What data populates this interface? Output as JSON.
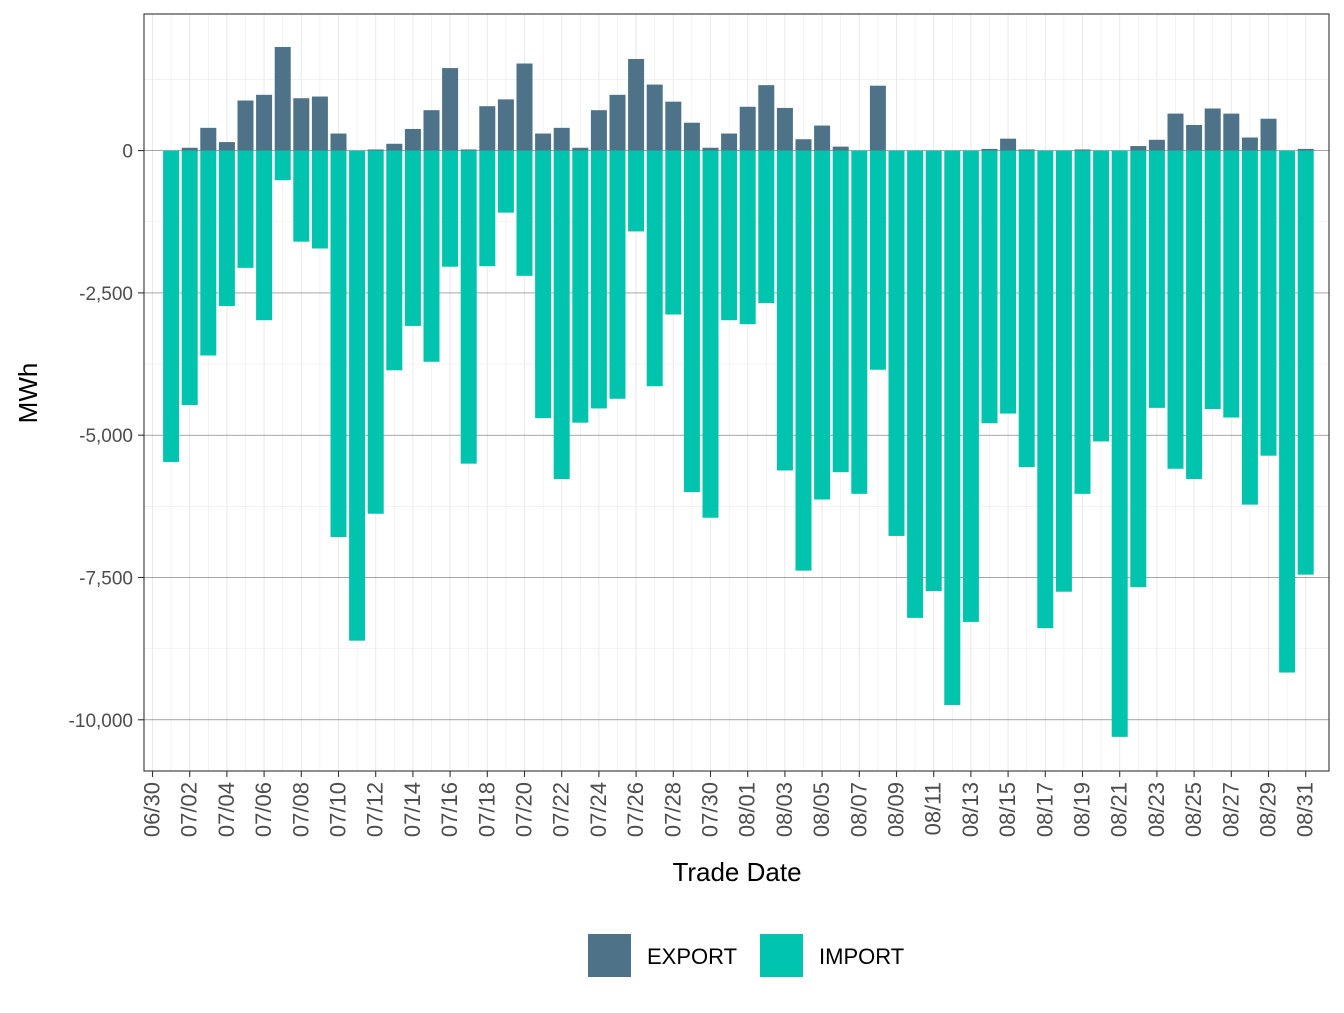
{
  "chart_data": {
    "type": "bar",
    "stacked": "diverging",
    "xlabel": "Trade Date",
    "ylabel": "MWh",
    "ylim": [
      -10900,
      2400
    ],
    "y_ticks": [
      0,
      -2500,
      -5000,
      -7500,
      -10000
    ],
    "y_tick_labels": [
      "0",
      "-2,500",
      "-5,000",
      "-7,500",
      "-10,000"
    ],
    "x_tick_labels": [
      "06/30",
      "07/02",
      "07/04",
      "07/06",
      "07/08",
      "07/10",
      "07/12",
      "07/14",
      "07/16",
      "07/18",
      "07/20",
      "07/22",
      "07/24",
      "07/26",
      "07/28",
      "07/30",
      "08/01",
      "08/03",
      "08/05",
      "08/07",
      "08/09",
      "08/11",
      "08/13",
      "08/15",
      "08/17",
      "08/19",
      "08/21",
      "08/23",
      "08/25",
      "08/27",
      "08/29",
      "08/31"
    ],
    "categories": [
      "07/01",
      "07/02",
      "07/03",
      "07/04",
      "07/05",
      "07/06",
      "07/07",
      "07/08",
      "07/09",
      "07/10",
      "07/11",
      "07/12",
      "07/13",
      "07/14",
      "07/15",
      "07/16",
      "07/17",
      "07/18",
      "07/19",
      "07/20",
      "07/21",
      "07/22",
      "07/23",
      "07/24",
      "07/25",
      "07/26",
      "07/27",
      "07/28",
      "07/29",
      "07/30",
      "07/31",
      "08/01",
      "08/02",
      "08/03",
      "08/04",
      "08/05",
      "08/06",
      "08/07",
      "08/08",
      "08/09",
      "08/10",
      "08/11",
      "08/12",
      "08/13",
      "08/14",
      "08/15",
      "08/16",
      "08/17",
      "08/18",
      "08/19",
      "08/20",
      "08/21",
      "08/22",
      "08/23",
      "08/24",
      "08/25",
      "08/26",
      "08/27",
      "08/28",
      "08/29",
      "08/30",
      "08/31"
    ],
    "series": [
      {
        "name": "EXPORT",
        "color": "#4e7287",
        "values": [
          0,
          50,
          400,
          150,
          880,
          980,
          1820,
          920,
          950,
          300,
          0,
          20,
          120,
          380,
          710,
          1450,
          20,
          780,
          900,
          1530,
          300,
          400,
          50,
          710,
          980,
          1610,
          1160,
          860,
          490,
          50,
          300,
          770,
          1150,
          750,
          200,
          440,
          70,
          0,
          1140,
          0,
          0,
          0,
          0,
          0,
          30,
          210,
          20,
          0,
          0,
          20,
          0,
          0,
          80,
          190,
          650,
          450,
          740,
          650,
          230,
          560,
          0,
          30
        ]
      },
      {
        "name": "IMPORT",
        "color": "#00c4ad",
        "values": [
          -5470,
          -4470,
          -3600,
          -2730,
          -2060,
          -2980,
          -520,
          -1600,
          -1720,
          -6790,
          -8610,
          -6380,
          -3860,
          -3080,
          -3710,
          -2040,
          -5500,
          -2030,
          -1090,
          -2200,
          -4700,
          -5770,
          -4780,
          -4530,
          -4360,
          -1420,
          -4140,
          -2880,
          -6000,
          -6450,
          -2980,
          -3050,
          -2680,
          -5620,
          -7380,
          -6130,
          -5650,
          -6030,
          -3850,
          -6770,
          -8210,
          -7740,
          -9740,
          -8280,
          -4790,
          -4620,
          -5560,
          -8390,
          -7750,
          -6030,
          -5110,
          -10300,
          -7670,
          -4520,
          -5590,
          -5770,
          -4540,
          -4690,
          -6220,
          -5360,
          -9170,
          -7450
        ]
      }
    ],
    "legend": {
      "position": "bottom",
      "items": [
        "EXPORT",
        "IMPORT"
      ]
    },
    "grid": true
  }
}
